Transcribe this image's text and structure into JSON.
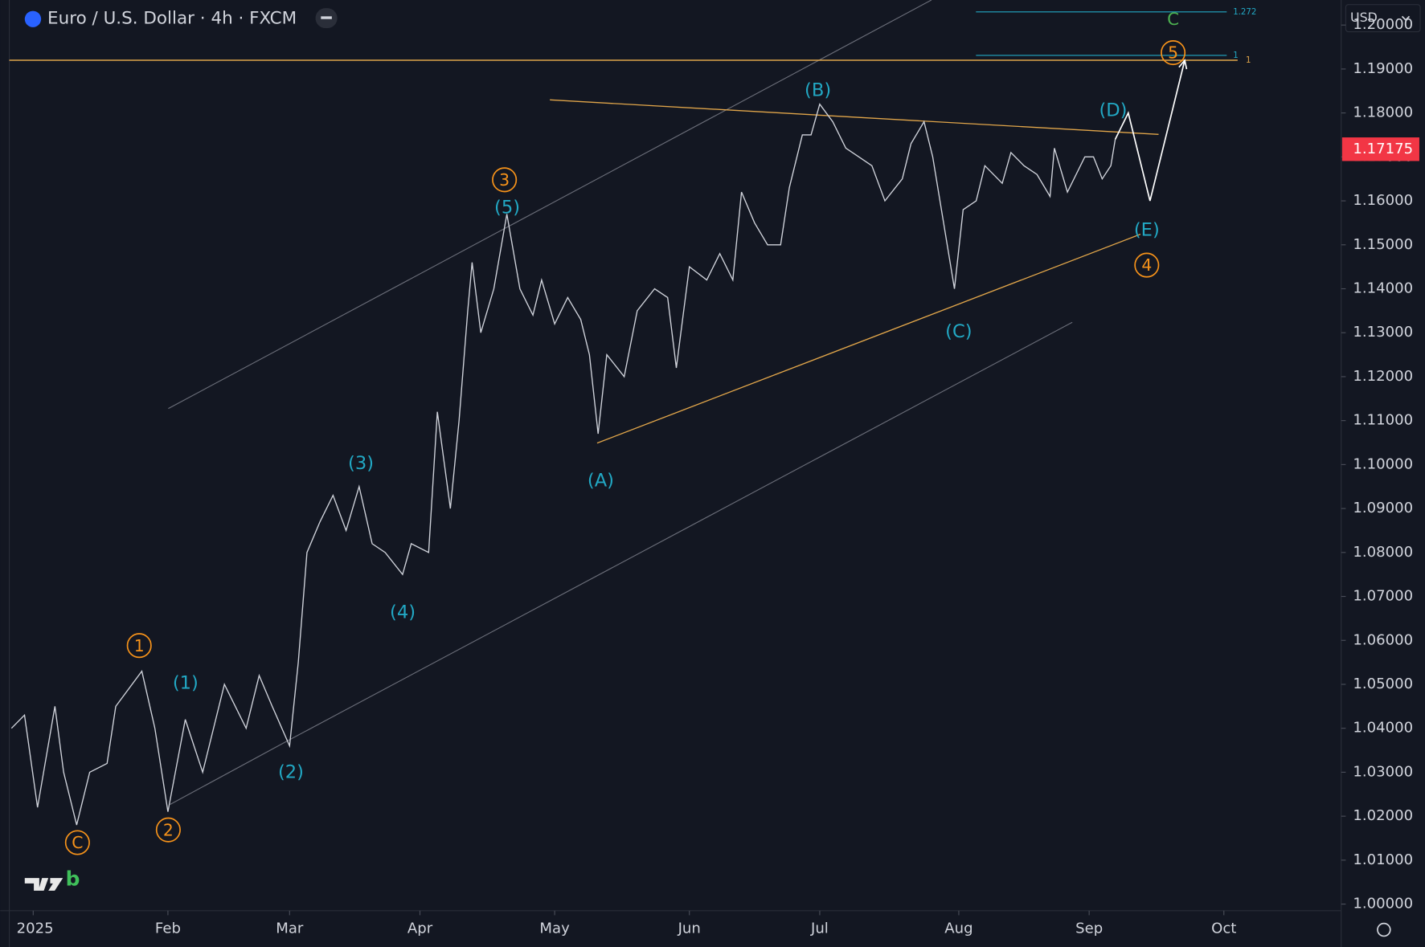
{
  "chart_data": {
    "type": "line",
    "title": "Euro / U.S. Dollar · 4h · FXCM",
    "currency": "USD",
    "logo_suffix": "b",
    "color": "#d1d4dc",
    "x": [
      -5,
      -2,
      1,
      5,
      7,
      10,
      13,
      17,
      19,
      25,
      28,
      31,
      35,
      39,
      44,
      49,
      52,
      55,
      59,
      61,
      63,
      66,
      69,
      72,
      75,
      78,
      81,
      85,
      87,
      91,
      93,
      96,
      98,
      100,
      101,
      103,
      106,
      109,
      112,
      115,
      117,
      120,
      123,
      126,
      128,
      130,
      132,
      136,
      139,
      143,
      146,
      148,
      151,
      155,
      158,
      161,
      163,
      166,
      169,
      172,
      174,
      177,
      179,
      181,
      184,
      187,
      190,
      193,
      196,
      200,
      202,
      205,
      207,
      209,
      212,
      214,
      217,
      219,
      223,
      225,
      228,
      231,
      234,
      235,
      238,
      242,
      244,
      246,
      248,
      249
    ],
    "values": [
      1.04,
      1.043,
      1.022,
      1.045,
      1.03,
      1.018,
      1.03,
      1.032,
      1.045,
      1.053,
      1.04,
      1.021,
      1.042,
      1.03,
      1.05,
      1.04,
      1.052,
      1.045,
      1.036,
      1.055,
      1.08,
      1.087,
      1.093,
      1.085,
      1.095,
      1.082,
      1.08,
      1.075,
      1.082,
      1.08,
      1.112,
      1.09,
      1.11,
      1.135,
      1.146,
      1.13,
      1.14,
      1.157,
      1.14,
      1.134,
      1.142,
      1.132,
      1.138,
      1.133,
      1.125,
      1.107,
      1.125,
      1.12,
      1.135,
      1.14,
      1.138,
      1.122,
      1.145,
      1.142,
      1.148,
      1.142,
      1.162,
      1.155,
      1.15,
      1.15,
      1.163,
      1.175,
      1.175,
      1.182,
      1.178,
      1.172,
      1.17,
      1.168,
      1.16,
      1.165,
      1.173,
      1.178,
      1.17,
      1.158,
      1.14,
      1.158,
      1.16,
      1.168,
      1.164,
      1.171,
      1.168,
      1.166,
      1.161,
      1.172,
      1.162,
      1.17,
      1.17,
      1.165,
      1.168,
      1.174
    ],
    "projection": {
      "color": "#ffffff",
      "x": [
        249,
        252,
        257,
        265
      ],
      "values": [
        1.174,
        1.18,
        1.16,
        1.192
      ]
    },
    "last_price": 1.17175,
    "resistance": {
      "color": "#e0a54a",
      "value": 1.192
    },
    "fib_levels": [
      {
        "value": 1.203,
        "label": "1.272"
      },
      {
        "value": 1.1931,
        "label": "1"
      }
    ],
    "resistance_label": "1",
    "xlim": [
      -5.5,
      301
    ],
    "ylim": [
      0.9985,
      1.2057
    ],
    "xticks": [
      {
        "value": 0,
        "label": "2025"
      },
      {
        "value": 31,
        "label": "Feb"
      },
      {
        "value": 59,
        "label": "Mar"
      },
      {
        "value": 89,
        "label": "Apr"
      },
      {
        "value": 120,
        "label": "May"
      },
      {
        "value": 151,
        "label": "Jun"
      },
      {
        "value": 181,
        "label": "Jul"
      },
      {
        "value": 213,
        "label": "Aug"
      },
      {
        "value": 243,
        "label": "Sep"
      },
      {
        "value": 274,
        "label": "Oct"
      }
    ],
    "yticks": [
      {
        "value": 1.0,
        "label": "1.00000"
      },
      {
        "value": 1.01,
        "label": "1.01000"
      },
      {
        "value": 1.02,
        "label": "1.02000"
      },
      {
        "value": 1.03,
        "label": "1.03000"
      },
      {
        "value": 1.04,
        "label": "1.04000"
      },
      {
        "value": 1.05,
        "label": "1.05000"
      },
      {
        "value": 1.06,
        "label": "1.06000"
      },
      {
        "value": 1.07,
        "label": "1.07000"
      },
      {
        "value": 1.08,
        "label": "1.08000"
      },
      {
        "value": 1.09,
        "label": "1.09000"
      },
      {
        "value": 1.1,
        "label": "1.10000"
      },
      {
        "value": 1.11,
        "label": "1.11000"
      },
      {
        "value": 1.12,
        "label": "1.12000"
      },
      {
        "value": 1.13,
        "label": "1.13000"
      },
      {
        "value": 1.14,
        "label": "1.14000"
      },
      {
        "value": 1.15,
        "label": "1.15000"
      },
      {
        "value": 1.16,
        "label": "1.16000"
      },
      {
        "value": 1.17,
        "label": "1.17000"
      },
      {
        "value": 1.18,
        "label": "1.18000"
      },
      {
        "value": 1.19,
        "label": "1.19000"
      },
      {
        "value": 1.2,
        "label": "1.20000"
      }
    ],
    "waves": {
      "orange": [
        "1",
        "2",
        "3",
        "4",
        "5",
        "C"
      ],
      "blue": [
        "(1)",
        "(2)",
        "(3)",
        "(4)",
        "(5)",
        "(A)",
        "(B)",
        "(C)",
        "(D)",
        "(E)"
      ],
      "green": [
        "C"
      ]
    }
  }
}
